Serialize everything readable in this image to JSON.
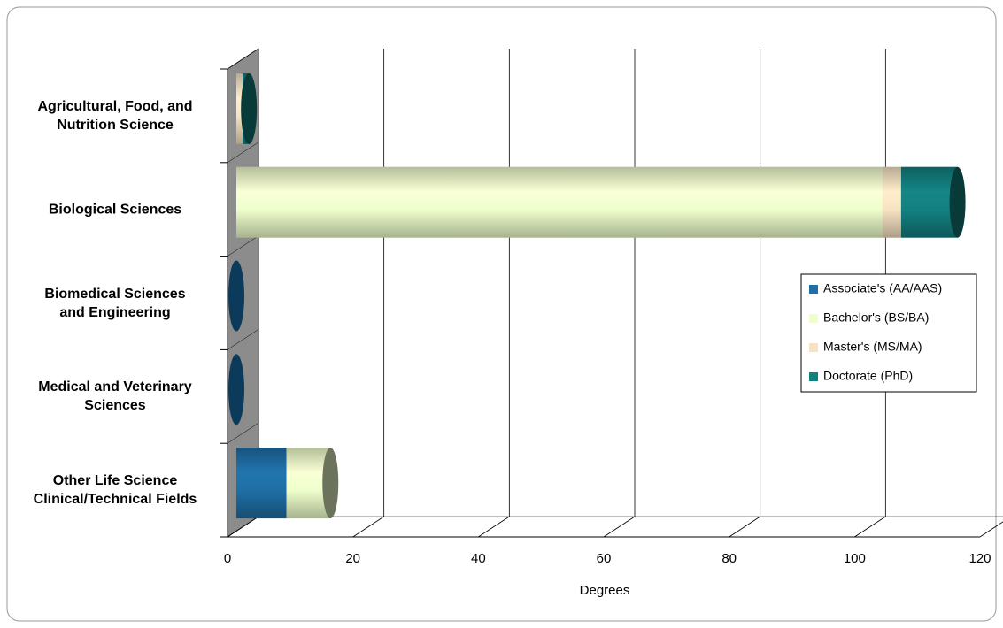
{
  "chart_data": {
    "type": "bar",
    "orientation": "horizontal",
    "stacked": true,
    "categories": [
      [
        "Agricultural, Food, and",
        "Nutrition Science"
      ],
      [
        "Biological Sciences"
      ],
      [
        "Biomedical Sciences",
        "and Engineering"
      ],
      [
        "Medical and Veterinary",
        "Sciences"
      ],
      [
        "Other Life Science",
        "Clinical/Technical Fields"
      ]
    ],
    "series": [
      {
        "name": "Associate's (AA/AAS)",
        "color": "#1f6fa6",
        "values": [
          0,
          0,
          0,
          0,
          8
        ]
      },
      {
        "name": "Bachelor's (BS/BA)",
        "color": "#eeffcc",
        "values": [
          0,
          103,
          0,
          0,
          7
        ]
      },
      {
        "name": "Master's (MS/MA)",
        "color": "#f7e3c2",
        "values": [
          1,
          3,
          0,
          0,
          0
        ]
      },
      {
        "name": "Doctorate (PhD)",
        "color": "#138080",
        "values": [
          1,
          9,
          0,
          0,
          0
        ]
      }
    ],
    "xlabel": "Degrees",
    "xlim": [
      0,
      120
    ],
    "xticks": [
      0,
      20,
      40,
      60,
      80,
      100,
      120
    ],
    "grid": true,
    "legend": "right"
  }
}
